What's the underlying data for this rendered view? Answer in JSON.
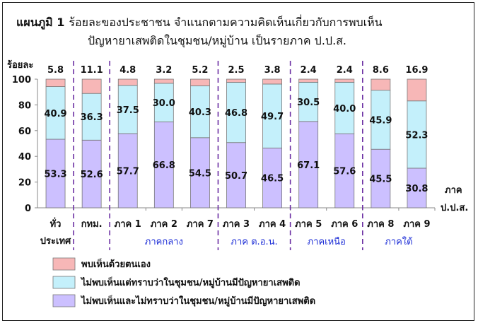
{
  "chart_data": {
    "type": "bar",
    "stacked": true,
    "title_line1_bold": "แผนภูมิ 1",
    "title_line1_rest": "ร้อยละของประชาชน จำแนกตามความคิดเห็นเกี่ยวกับการพบเห็น",
    "title_line2": "ปัญหายาเสพติดในชุมชน/หมู่บ้าน  เป็นรายภาค ป.ป.ส.",
    "ylabel": "ร้อยละ",
    "xlabel_line1": "ภาค",
    "xlabel_line2": "ป.ป.ส.",
    "ylim": [
      0,
      100
    ],
    "yticks": [
      "0",
      "20",
      "40",
      "60",
      "80",
      "100"
    ],
    "categories": [
      [
        "ทั่ว",
        "ประเทศ"
      ],
      [
        "กทม."
      ],
      [
        "ภาค 1"
      ],
      [
        "ภาค 2"
      ],
      [
        "ภาค 7"
      ],
      [
        "ภาค 3"
      ],
      [
        "ภาค 4"
      ],
      [
        "ภาค 5"
      ],
      [
        "ภาค 6"
      ],
      [
        "ภาค 8"
      ],
      [
        "ภาค 9"
      ]
    ],
    "series": [
      {
        "name": "ไม่พบเห็นและไม่ทราบว่าในชุมชน/หมู่บ้านมีปัญหายาเสพติด",
        "color": "#ccc0ff",
        "values": [
          53.3,
          52.6,
          57.7,
          66.8,
          54.5,
          50.7,
          46.5,
          67.1,
          57.6,
          45.5,
          30.8
        ],
        "labels": [
          "53.3",
          "52.6",
          "57.7",
          "66.8",
          "54.5",
          "50.7",
          "46.5",
          "67.1",
          "57.6",
          "45.5",
          "30.8"
        ]
      },
      {
        "name": "ไม่พบเห็นแต่ทราบว่าในชุมชน/หมู่บ้านมีปัญหายาเสพติด",
        "color": "#c4f0fb",
        "values": [
          40.9,
          36.3,
          37.5,
          30.0,
          40.3,
          46.8,
          49.7,
          30.5,
          40.0,
          45.9,
          52.3
        ],
        "labels": [
          "40.9",
          "36.3",
          "37.5",
          "30.0",
          "40.3",
          "46.8",
          "49.7",
          "30.5",
          "40.0",
          "45.9",
          "52.3"
        ]
      },
      {
        "name": "พบเห็นด้วยตนเอง",
        "color": "#f7b7b7",
        "values": [
          5.8,
          11.1,
          4.8,
          3.2,
          5.2,
          2.5,
          3.8,
          2.4,
          2.4,
          8.6,
          16.9
        ],
        "labels": [
          "5.8",
          "11.1",
          "4.8",
          "3.2",
          "5.2",
          "2.5",
          "3.8",
          "2.4",
          "2.4",
          "8.6",
          "16.9"
        ]
      }
    ],
    "region_groups": [
      {
        "label": "ภาคกลาง",
        "from": 2,
        "to": 4
      },
      {
        "label": "ภาค ต.อ.น.",
        "from": 5,
        "to": 6
      },
      {
        "label": "ภาคเหนือ",
        "from": 7,
        "to": 8
      },
      {
        "label": "ภาคใต้",
        "from": 9,
        "to": 10
      }
    ],
    "dividers_after": [
      0,
      1,
      4,
      6,
      8
    ],
    "legend_order": [
      2,
      1,
      0
    ],
    "legend_position": "bottom-left",
    "grid": false
  }
}
